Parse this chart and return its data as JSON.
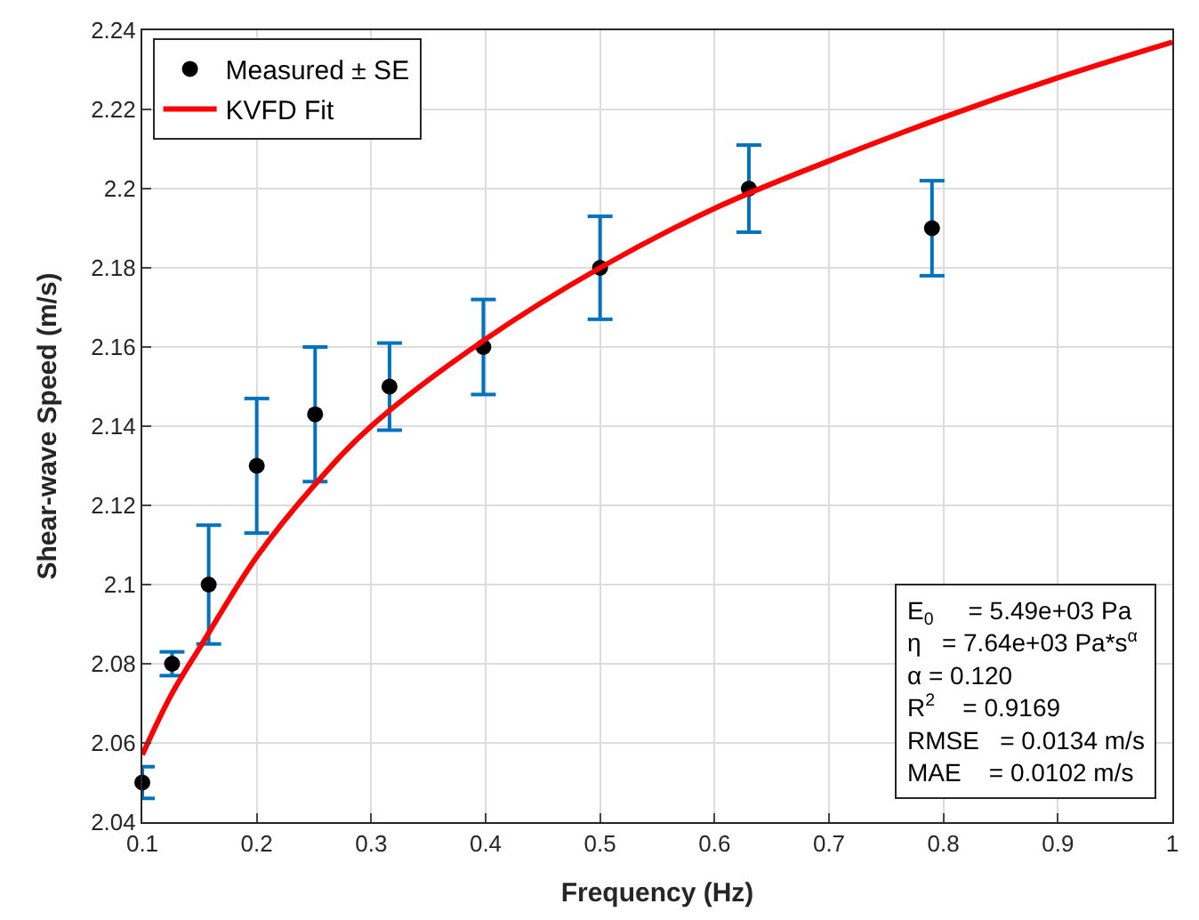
{
  "chart_data": {
    "type": "scatter",
    "xlabel": "Frequency (Hz)",
    "ylabel": "Shear-wave Speed (m/s)",
    "xlim": [
      0.1,
      1
    ],
    "xticks": [
      0.1,
      0.2,
      0.3,
      0.4,
      0.5,
      0.6,
      0.7,
      0.8,
      0.9,
      1
    ],
    "ylim": [
      2.04,
      2.24
    ],
    "yticks": [
      2.04,
      2.06,
      2.08,
      2.1,
      2.12,
      2.14,
      2.16,
      2.18,
      2.2,
      2.22,
      2.24
    ],
    "grid": true,
    "legend": "top left",
    "series": [
      {
        "name": "Measured ± SE",
        "color": "#000000",
        "marker": "circle",
        "x": [
          0.1,
          0.126,
          0.158,
          0.2,
          0.251,
          0.316,
          0.398,
          0.5,
          0.63,
          0.79
        ],
        "values": [
          2.05,
          2.08,
          2.1,
          2.13,
          2.143,
          2.15,
          2.16,
          2.18,
          2.2,
          2.19
        ],
        "errors": [
          0.004,
          0.003,
          0.015,
          0.017,
          0.017,
          0.011,
          0.012,
          0.013,
          0.011,
          0.012
        ]
      },
      {
        "name": "KVFD Fit",
        "type": "line",
        "color": "#ff0000",
        "x": [
          0.1,
          0.125,
          0.15,
          0.2,
          0.25,
          0.3,
          0.4,
          0.5,
          0.6,
          0.7,
          0.8,
          0.9,
          1
        ],
        "values": [
          2.057,
          2.072,
          2.084,
          2.107,
          2.125,
          2.14,
          2.162,
          2.18,
          2.195,
          2.207,
          2.218,
          2.228,
          2.237
        ]
      }
    ],
    "annotations": [
      "E$_{0}$     = 5.49e+03 Pa",
      "η   = 7.64e+03 Pa*s$^{α}$",
      "α = 0.120",
      "R$^{2}$    = 0.9169",
      "RMSE   = 0.0134 m/s",
      "MAE    = 0.0102 m/s"
    ]
  }
}
